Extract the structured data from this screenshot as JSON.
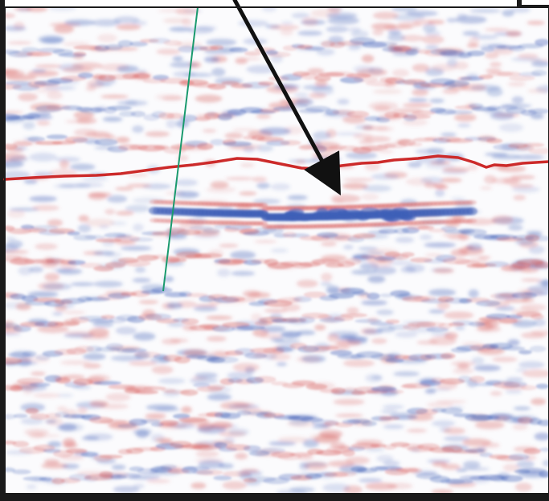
{
  "colors": {
    "frame": "#1a1a1a",
    "section_background": "#fbfbfd",
    "positive_amplitude": "#d8605f",
    "negative_amplitude": "#3f5fb7",
    "horizon_line": "#cc2a2a",
    "well_path": "#1a9a6e",
    "arrow": "#111111"
  },
  "icons": {
    "arrow": "arrow-annotation-icon"
  }
}
